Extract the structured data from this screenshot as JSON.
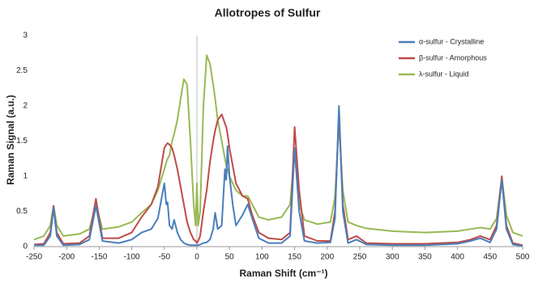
{
  "chart_data": {
    "type": "line",
    "title": "Allotropes of Sulfur",
    "x_label": "Raman Shift (cm⁻¹)",
    "y_label": "Raman Signal (a.u.)",
    "x": [
      -250,
      -235,
      -225,
      -220,
      -215,
      -205,
      -180,
      -165,
      -155,
      -145,
      -120,
      -100,
      -85,
      -70,
      -60,
      -50,
      -47,
      -45,
      -42,
      -38,
      -35,
      -30,
      -25,
      -20,
      -15,
      -10,
      -5,
      -2,
      0,
      2,
      5,
      10,
      15,
      20,
      25,
      28,
      32,
      38,
      43,
      45,
      47,
      50,
      55,
      60,
      70,
      78,
      85,
      95,
      110,
      130,
      143,
      150,
      157,
      165,
      185,
      205,
      212,
      218,
      224,
      232,
      245,
      260,
      300,
      350,
      400,
      420,
      435,
      450,
      460,
      468,
      475,
      485,
      500
    ],
    "series": [
      {
        "name": "α-sulfur - Crystalline",
        "color": "#4a7ebb",
        "values": [
          0.02,
          0.02,
          0.15,
          0.55,
          0.15,
          0.02,
          0.03,
          0.1,
          0.58,
          0.08,
          0.05,
          0.1,
          0.2,
          0.25,
          0.4,
          0.9,
          0.6,
          0.63,
          0.3,
          0.25,
          0.38,
          0.2,
          0.1,
          0.05,
          0.03,
          0.02,
          0.02,
          0.02,
          0.02,
          0.02,
          0.03,
          0.05,
          0.06,
          0.1,
          0.25,
          0.48,
          0.25,
          0.3,
          1.1,
          0.95,
          1.43,
          1.0,
          0.6,
          0.3,
          0.45,
          0.6,
          0.4,
          0.12,
          0.05,
          0.05,
          0.15,
          1.4,
          0.5,
          0.08,
          0.05,
          0.06,
          0.4,
          2.0,
          0.5,
          0.05,
          0.1,
          0.03,
          0.02,
          0.02,
          0.04,
          0.08,
          0.12,
          0.06,
          0.25,
          0.95,
          0.25,
          0.03,
          0.01
        ]
      },
      {
        "name": "β-sulfur - Amorphous",
        "color": "#be4b48",
        "values": [
          0.03,
          0.04,
          0.2,
          0.58,
          0.2,
          0.04,
          0.05,
          0.15,
          0.68,
          0.12,
          0.12,
          0.2,
          0.42,
          0.6,
          0.85,
          1.4,
          1.45,
          1.47,
          1.45,
          1.4,
          1.3,
          1.1,
          0.85,
          0.6,
          0.35,
          0.2,
          0.1,
          0.08,
          0.05,
          0.08,
          0.15,
          0.5,
          0.8,
          1.2,
          1.5,
          1.65,
          1.8,
          1.88,
          1.75,
          1.7,
          1.6,
          1.4,
          1.15,
          0.9,
          0.72,
          0.68,
          0.45,
          0.2,
          0.12,
          0.1,
          0.2,
          1.7,
          0.8,
          0.15,
          0.08,
          0.08,
          0.5,
          1.9,
          0.6,
          0.1,
          0.15,
          0.05,
          0.04,
          0.04,
          0.06,
          0.1,
          0.15,
          0.1,
          0.3,
          1.0,
          0.3,
          0.05,
          0.02
        ]
      },
      {
        "name": "λ-sulfur - Liquid",
        "color": "#98b954",
        "values": [
          0.1,
          0.15,
          0.3,
          0.58,
          0.3,
          0.15,
          0.18,
          0.25,
          0.6,
          0.25,
          0.28,
          0.35,
          0.48,
          0.6,
          0.8,
          1.1,
          1.2,
          1.25,
          1.3,
          1.5,
          1.6,
          1.8,
          2.1,
          2.38,
          2.3,
          1.5,
          0.6,
          0.3,
          0.9,
          0.3,
          0.5,
          2.0,
          2.72,
          2.6,
          2.3,
          2.1,
          1.8,
          1.5,
          1.25,
          1.15,
          1.1,
          1.0,
          0.9,
          0.8,
          0.72,
          0.72,
          0.6,
          0.42,
          0.38,
          0.42,
          0.6,
          1.35,
          0.6,
          0.38,
          0.32,
          0.35,
          0.7,
          1.75,
          0.8,
          0.35,
          0.3,
          0.26,
          0.22,
          0.2,
          0.22,
          0.25,
          0.27,
          0.25,
          0.4,
          0.98,
          0.45,
          0.2,
          0.15
        ]
      }
    ],
    "xlim": [
      -250,
      500
    ],
    "xticks": [
      -250,
      -200,
      -150,
      -100,
      -50,
      0,
      50,
      100,
      150,
      200,
      250,
      300,
      350,
      400,
      450,
      500
    ],
    "ylim": [
      0,
      3
    ],
    "yticks": [
      0,
      0.5,
      1,
      1.5,
      2,
      2.5,
      3
    ],
    "grid": false,
    "legend": "upper-right"
  }
}
